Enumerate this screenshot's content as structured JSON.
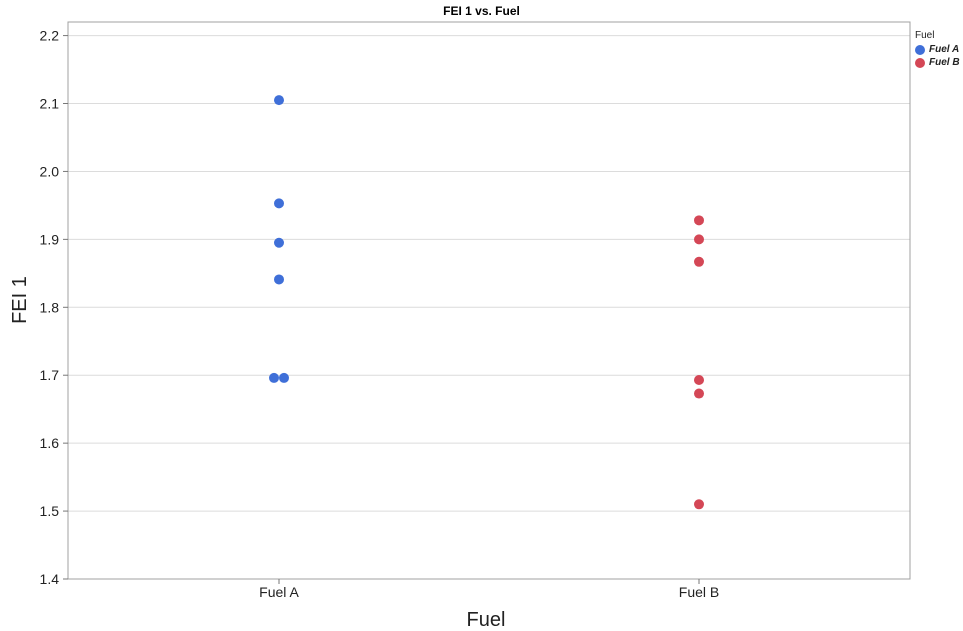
{
  "chart_data": {
    "type": "scatter",
    "title": "FEI 1 vs. Fuel",
    "xlabel": "Fuel",
    "ylabel": "FEI 1",
    "categories": [
      "Fuel A",
      "Fuel B"
    ],
    "ylim": [
      1.4,
      2.22
    ],
    "yticks": [
      "1.4",
      "1.5",
      "1.6",
      "1.7",
      "1.8",
      "1.9",
      "2.0",
      "2.1",
      "2.2"
    ],
    "grid": true,
    "legend": {
      "title": "Fuel",
      "placement": "top-right",
      "entries": [
        "Fuel A",
        "Fuel B"
      ]
    },
    "series": [
      {
        "name": "Fuel A",
        "color": "#3f6fd8",
        "values": [
          2.105,
          1.953,
          1.895,
          1.841,
          1.696,
          1.696
        ]
      },
      {
        "name": "Fuel B",
        "color": "#d44756",
        "values": [
          1.928,
          1.9,
          1.867,
          1.693,
          1.673,
          1.51
        ]
      }
    ]
  }
}
